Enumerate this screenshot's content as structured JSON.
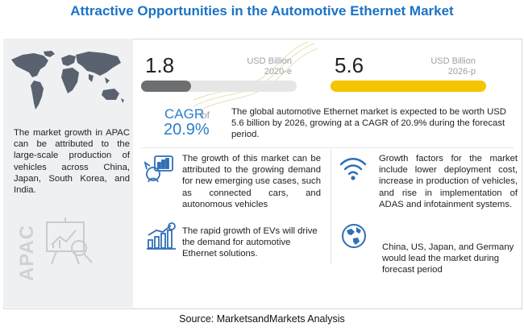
{
  "title": "Attractive Opportunities in the Automotive Ethernet Market",
  "left_panel": {
    "text": "The market growth in APAC can be attributed to the large-scale production of vehicles across China, Japan, South Korea, and India.",
    "region_label": "APAC"
  },
  "market_2020": {
    "value": "1.8",
    "unit": "USD Billion",
    "year": "2020-e",
    "bar_fraction": 0.32,
    "color": "#6d6e70"
  },
  "market_2026": {
    "value": "5.6",
    "unit": "USD Billion",
    "year": "2026-p",
    "bar_fraction": 1.0,
    "color": "#f7c400"
  },
  "cagr": {
    "label": "CAGR",
    "of_text": "of",
    "value": "20.9%",
    "summary": "The global automotive Ethernet market is expected to be worth USD 5.6 billion by 2026, growing at a CAGR of 20.9% during the forecast period."
  },
  "items": [
    {
      "icon": "growth-analysis-icon",
      "text": "The growth of this market can be attributed to the growing demand for new emerging use cases, such as connected cars, and autonomous vehicles"
    },
    {
      "icon": "wifi-signal-icon",
      "text": "Growth factors for the market include lower deployment cost, increase in production of vehicles, and rise in implementation of ADAS and infotainment systems."
    },
    {
      "icon": "ev-growth-chart-icon",
      "text": "The rapid growth of EVs will drive the demand for automotive Ethernet solutions."
    },
    {
      "icon": "globe-icon",
      "text": "China, US, Japan, and Germany would lead the market during forecast period"
    }
  ],
  "source": "Source: MarketsandMarkets Analysis",
  "colors": {
    "title_blue": "#1a73c7",
    "cagr_blue": "#2a7fc8",
    "icon_blue": "#2f6fb5"
  }
}
